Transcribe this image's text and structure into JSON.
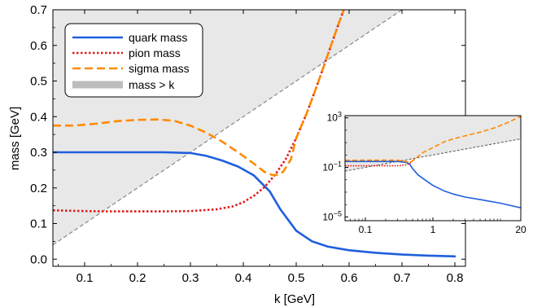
{
  "chart_data": [
    {
      "type": "line",
      "role": "main",
      "xlabel": "k  [GeV]",
      "ylabel": "mass [GeV]",
      "xlim": [
        0.04,
        0.82
      ],
      "ylim": [
        -0.02,
        0.7
      ],
      "x_ticks": [
        "0.1",
        "0.2",
        "0.3",
        "0.4",
        "0.5",
        "0.6",
        "0.7",
        "0.8"
      ],
      "y_ticks": [
        "0.0",
        "0.1",
        "0.2",
        "0.3",
        "0.4",
        "0.5",
        "0.6",
        "0.7"
      ],
      "grid": false,
      "legend_position": "top-left",
      "shaded_region": {
        "name": "mass > k",
        "color": "#e8e8e8",
        "legend_color": "#bdbdbd",
        "boundary": "mass = k"
      },
      "diagonal_line": {
        "style": "dashed",
        "color": "#888888"
      },
      "series": [
        {
          "name": "quark mass",
          "color": "#1f5fdc",
          "style": "solid",
          "x": [
            0.04,
            0.1,
            0.15,
            0.2,
            0.25,
            0.3,
            0.33,
            0.36,
            0.39,
            0.42,
            0.45,
            0.47,
            0.5,
            0.53,
            0.56,
            0.6,
            0.65,
            0.7,
            0.75,
            0.8
          ],
          "y": [
            0.3,
            0.3,
            0.3,
            0.3,
            0.3,
            0.298,
            0.29,
            0.277,
            0.26,
            0.235,
            0.19,
            0.14,
            0.08,
            0.05,
            0.035,
            0.025,
            0.018,
            0.013,
            0.01,
            0.008
          ]
        },
        {
          "name": "pion mass",
          "color": "#e01b1b",
          "style": "dotted",
          "x": [
            0.04,
            0.1,
            0.15,
            0.2,
            0.25,
            0.3,
            0.35,
            0.38,
            0.4,
            0.42,
            0.44,
            0.46,
            0.48,
            0.5,
            0.52,
            0.54,
            0.56,
            0.58,
            0.59
          ],
          "y": [
            0.137,
            0.135,
            0.134,
            0.134,
            0.134,
            0.135,
            0.14,
            0.148,
            0.16,
            0.178,
            0.202,
            0.237,
            0.28,
            0.34,
            0.41,
            0.49,
            0.575,
            0.66,
            0.7
          ]
        },
        {
          "name": "sigma mass",
          "color": "#ff8a00",
          "style": "dashed",
          "x": [
            0.04,
            0.08,
            0.12,
            0.16,
            0.2,
            0.24,
            0.27,
            0.3,
            0.33,
            0.36,
            0.39,
            0.42,
            0.44,
            0.455,
            0.465,
            0.475,
            0.49,
            0.5,
            0.52,
            0.54,
            0.56,
            0.58,
            0.59
          ],
          "y": [
            0.375,
            0.375,
            0.38,
            0.387,
            0.391,
            0.392,
            0.388,
            0.375,
            0.355,
            0.33,
            0.3,
            0.268,
            0.245,
            0.236,
            0.237,
            0.245,
            0.28,
            0.34,
            0.41,
            0.49,
            0.575,
            0.66,
            0.7
          ]
        }
      ]
    },
    {
      "type": "line",
      "role": "inset",
      "x_scale": "log",
      "y_scale": "log",
      "xlim": [
        0.05,
        20
      ],
      "ylim": [
        5e-06,
        1500
      ],
      "x_ticks": [
        "0.1",
        "1",
        "20"
      ],
      "y_ticks": [
        {
          "base": "10",
          "exp": "3"
        },
        {
          "base": "10",
          "exp": "−1"
        },
        {
          "base": "10",
          "exp": "−5"
        }
      ],
      "grid": false,
      "shaded_region": {
        "name": "mass > k",
        "color": "#e8e8e8",
        "boundary": "mass = k"
      },
      "series": [
        {
          "name": "quark mass",
          "color": "#1f5fdc",
          "style": "solid",
          "x": [
            0.05,
            0.1,
            0.2,
            0.3,
            0.4,
            0.45,
            0.5,
            0.6,
            0.8,
            1.0,
            1.5,
            2,
            3,
            5,
            10,
            20
          ],
          "y": [
            0.3,
            0.3,
            0.3,
            0.298,
            0.25,
            0.19,
            0.08,
            0.025,
            0.008,
            0.0035,
            0.0012,
            0.0007,
            0.0004,
            0.00025,
            0.00013,
            5.5e-05
          ]
        },
        {
          "name": "pion mass",
          "color": "#e01b1b",
          "style": "dotted",
          "x": [
            0.05,
            0.1,
            0.2,
            0.3,
            0.4,
            0.45,
            0.5,
            0.55
          ],
          "y": [
            0.137,
            0.134,
            0.134,
            0.135,
            0.16,
            0.2,
            0.34,
            0.5
          ]
        },
        {
          "name": "sigma mass",
          "color": "#ff8a00",
          "style": "dashed",
          "x": [
            0.05,
            0.1,
            0.2,
            0.3,
            0.4,
            0.45,
            0.5,
            0.55,
            0.7,
            1.0,
            1.5,
            2,
            3,
            5,
            8,
            12,
            20
          ],
          "y": [
            0.375,
            0.38,
            0.39,
            0.375,
            0.3,
            0.237,
            0.34,
            0.5,
            1.5,
            4,
            12,
            20,
            35,
            70,
            150,
            350,
            1300
          ]
        }
      ]
    }
  ]
}
